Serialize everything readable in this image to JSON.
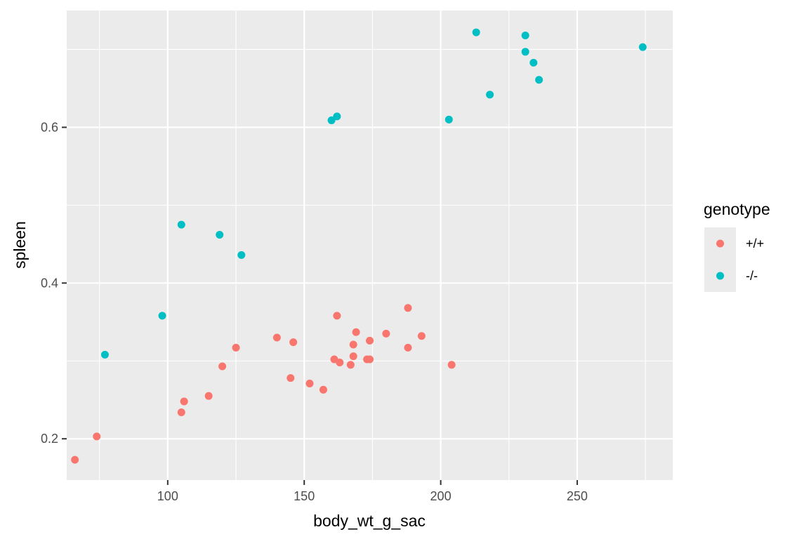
{
  "chart_data": {
    "type": "scatter",
    "title": "",
    "xlabel": "body_wt_g_sac",
    "ylabel": "spleen",
    "xlim": [
      63,
      285
    ],
    "ylim": [
      0.147,
      0.75
    ],
    "x_ticks": [
      100,
      150,
      200,
      250
    ],
    "x_tick_labels": [
      "100",
      "150",
      "200",
      "250"
    ],
    "y_ticks": [
      0.2,
      0.4,
      0.6
    ],
    "y_tick_labels": [
      "0.2",
      "0.4",
      "0.6"
    ],
    "grid": true,
    "legend": {
      "title": "genotype",
      "position": "right"
    },
    "series": [
      {
        "name": "+/+",
        "color": "#F8766D",
        "points": [
          [
            66,
            0.173
          ],
          [
            74,
            0.203
          ],
          [
            105,
            0.234
          ],
          [
            106,
            0.248
          ],
          [
            115,
            0.255
          ],
          [
            120,
            0.293
          ],
          [
            125,
            0.317
          ],
          [
            140,
            0.33
          ],
          [
            145,
            0.278
          ],
          [
            146,
            0.324
          ],
          [
            152,
            0.271
          ],
          [
            157,
            0.263
          ],
          [
            161,
            0.302
          ],
          [
            162,
            0.358
          ],
          [
            163,
            0.298
          ],
          [
            167,
            0.295
          ],
          [
            168,
            0.306
          ],
          [
            168,
            0.321
          ],
          [
            169,
            0.337
          ],
          [
            173,
            0.302
          ],
          [
            174,
            0.302
          ],
          [
            174,
            0.326
          ],
          [
            180,
            0.335
          ],
          [
            188,
            0.368
          ],
          [
            188,
            0.317
          ],
          [
            193,
            0.332
          ],
          [
            204,
            0.295
          ]
        ]
      },
      {
        "name": "-/-",
        "color": "#00BFC4",
        "points": [
          [
            77,
            0.308
          ],
          [
            98,
            0.358
          ],
          [
            105,
            0.475
          ],
          [
            119,
            0.462
          ],
          [
            127,
            0.436
          ],
          [
            160,
            0.609
          ],
          [
            162,
            0.614
          ],
          [
            203,
            0.61
          ],
          [
            213,
            0.722
          ],
          [
            218,
            0.642
          ],
          [
            231,
            0.718
          ],
          [
            231,
            0.697
          ],
          [
            234,
            0.683
          ],
          [
            236,
            0.661
          ],
          [
            274,
            0.703
          ]
        ]
      }
    ]
  }
}
